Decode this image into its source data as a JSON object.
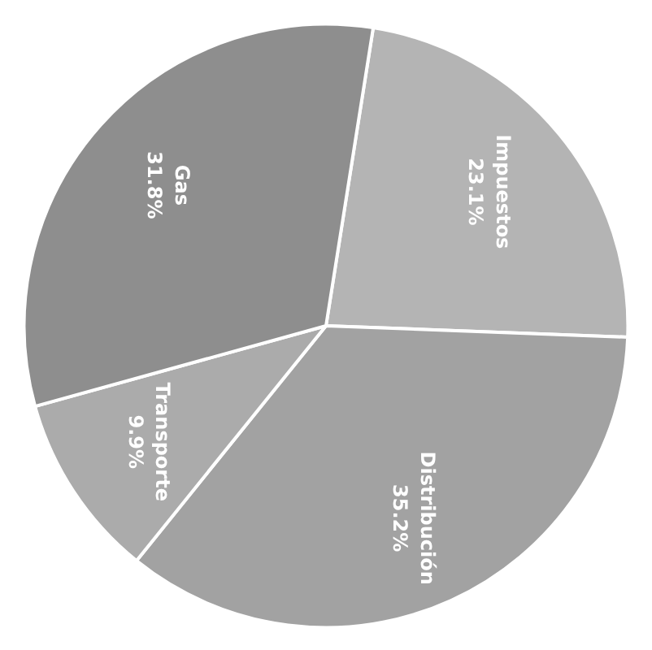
{
  "chart_data": {
    "type": "pie",
    "categories": [
      "Impuestos",
      "Distribución",
      "Transporte",
      "Gas"
    ],
    "values": [
      23.1,
      35.2,
      9.9,
      31.8
    ],
    "colors": [
      "#b4b4b4",
      "#a2a2a2",
      "#ababab",
      "#8e8e8e"
    ],
    "value_labels": [
      "23.1%",
      "35.2%",
      "9.9%",
      "31.8%"
    ]
  }
}
